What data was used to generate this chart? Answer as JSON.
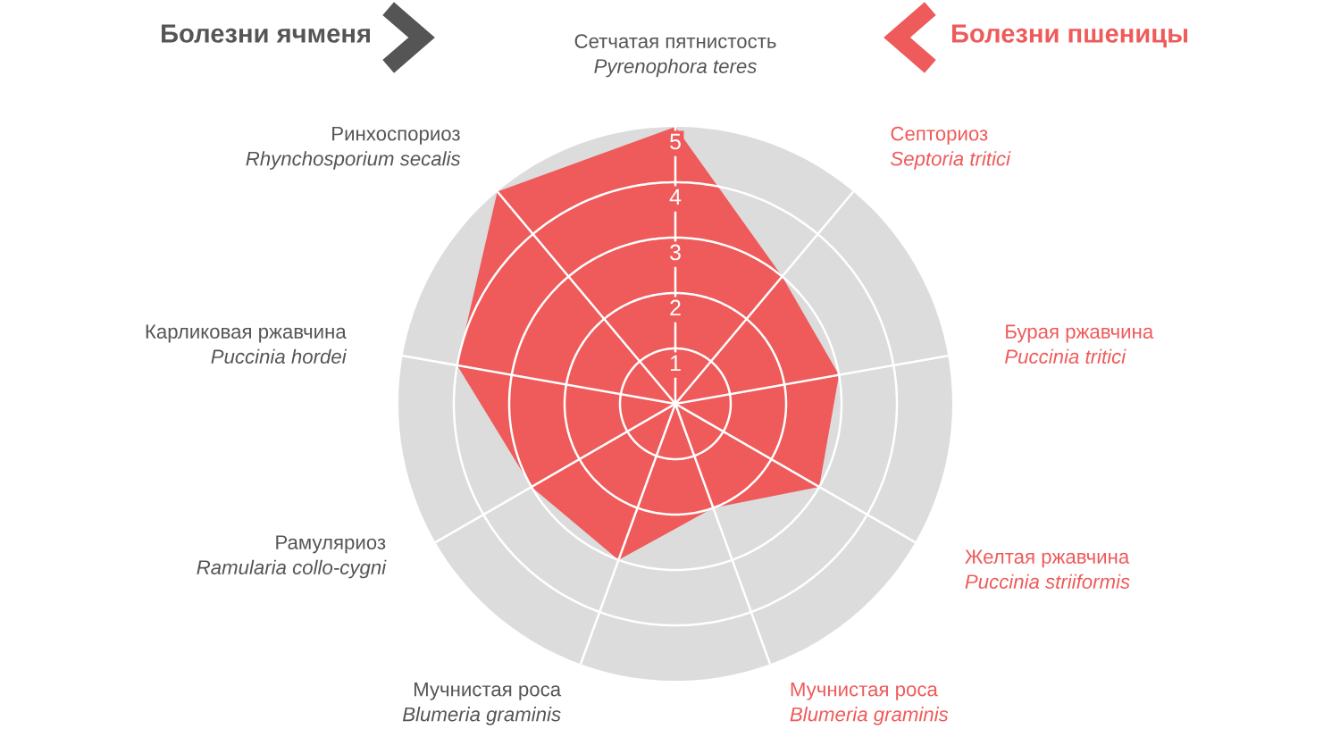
{
  "chart_data": {
    "type": "radar",
    "categories": [
      "Сетчатая пятнистость\nPyrenophora teres",
      "Септориоз\nSeptoria tritici",
      "Бурая ржавчина\nPuccinia tritici",
      "Желтая ржавчина\nPuccinia striiformis",
      "Мучнистая роса\nBlumeria graminis",
      "Мучнистая роса\nBlumeria graminis",
      "Рамуляриоз\nRamularia collo-cygni",
      "Карликовая ржавчина\nPuccinia hordei",
      "Ринхоспориоз\nRhynchosporium secalis"
    ],
    "colors": [
      "#555555",
      "#ef5a5a",
      "#ef5a5a",
      "#ef5a5a",
      "#ef5a5a",
      "#555555",
      "#555555",
      "#555555",
      "#555555"
    ],
    "series": [
      {
        "color": "#ef5a5a",
        "values": [
          5,
          3,
          3,
          3,
          2,
          3,
          3,
          4,
          5
        ]
      }
    ],
    "ylim": [
      0,
      5
    ],
    "yticks": [
      1,
      2,
      3,
      4,
      5
    ],
    "grid": true,
    "annotations": [
      "Болезни ячменя",
      "Болезни пшеницы"
    ]
  }
}
